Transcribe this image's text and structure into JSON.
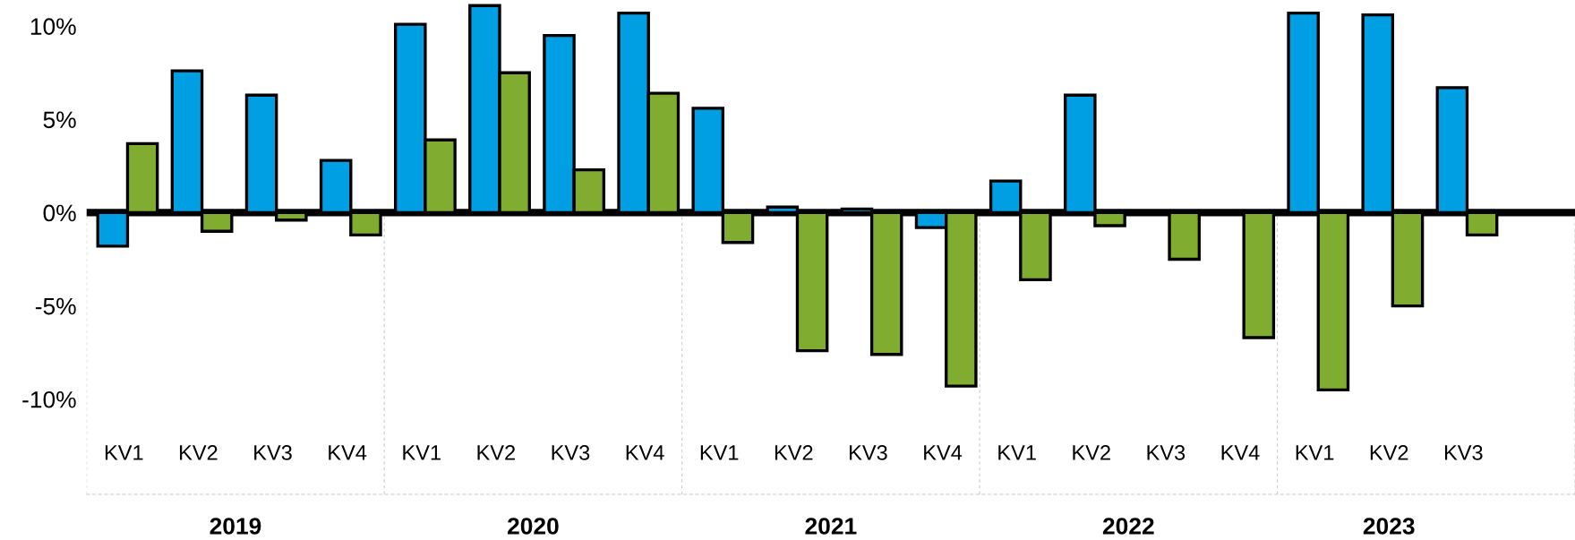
{
  "chart_data": {
    "type": "bar",
    "categories": [
      "KV1",
      "KV2",
      "KV3",
      "KV4",
      "KV1",
      "KV2",
      "KV3",
      "KV4",
      "KV1",
      "KV2",
      "KV3",
      "KV4",
      "KV1",
      "KV2",
      "KV3",
      "KV4",
      "KV1",
      "KV2",
      "KV3"
    ],
    "series": [
      {
        "color": "#009fe3",
        "values": [
          -1.8,
          7.6,
          6.3,
          2.8,
          10.1,
          11.1,
          9.5,
          10.7,
          5.6,
          0.3,
          0.2,
          -0.8,
          1.7,
          6.3,
          null,
          null,
          10.7,
          10.6,
          6.7
        ]
      },
      {
        "color": "#80ad2f",
        "values": [
          3.7,
          -1.0,
          -0.4,
          -1.2,
          3.9,
          7.5,
          2.3,
          6.4,
          -1.6,
          -7.4,
          -7.6,
          -9.3,
          -3.6,
          -0.7,
          -2.5,
          -6.7,
          -9.5,
          -5.0,
          -1.2
        ]
      }
    ],
    "ylim": [
      -15.1,
      11.4
    ],
    "yticks": [
      {
        "value": 10,
        "label": "10%"
      },
      {
        "value": 5,
        "label": "5%"
      },
      {
        "value": 0,
        "label": "0%"
      },
      {
        "value": -5,
        "label": "-5%"
      },
      {
        "value": -10,
        "label": "-10%"
      }
    ],
    "ref_lines": [
      {
        "axis": "y",
        "value": 0,
        "color": "#000000"
      }
    ],
    "annotations": [
      "2019",
      "2020",
      "2021",
      "2022",
      "2023"
    ],
    "grid": false
  }
}
